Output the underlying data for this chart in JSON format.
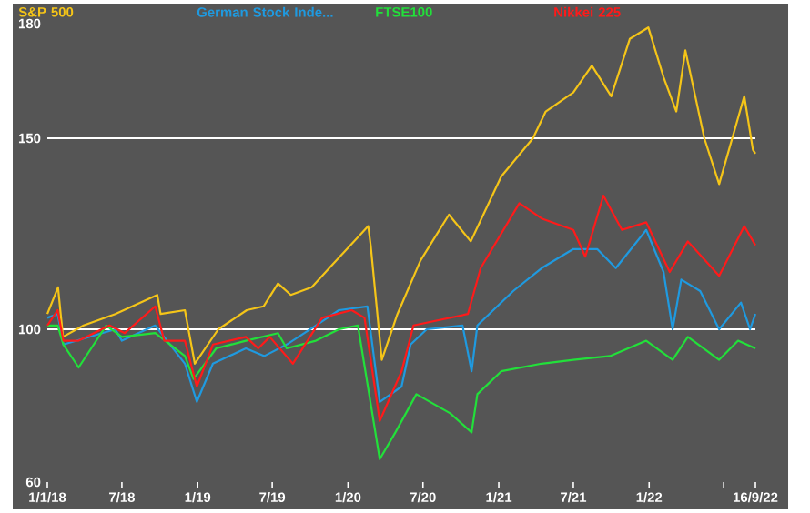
{
  "chart_data": {
    "type": "line",
    "legend": "top",
    "line_style": "solid",
    "xlim": [
      "2018-01-01",
      "2022-09-16"
    ],
    "xticks": [
      {
        "value": "2018-01-01",
        "label": "1/1/18"
      },
      {
        "value": "2018-07-01",
        "label": "7/18"
      },
      {
        "value": "2019-01-01",
        "label": "1/19"
      },
      {
        "value": "2019-07-01",
        "label": "7/19"
      },
      {
        "value": "2020-01-01",
        "label": "1/20"
      },
      {
        "value": "2020-07-01",
        "label": "7/20"
      },
      {
        "value": "2021-01-01",
        "label": "1/21"
      },
      {
        "value": "2021-07-01",
        "label": "7/21"
      },
      {
        "value": "2022-01-01",
        "label": "1/22"
      },
      {
        "value": "2022-07-01",
        "label": null
      },
      {
        "value": "2022-09-16",
        "label": "16/9/22"
      }
    ],
    "ylim": [
      60,
      180
    ],
    "yticks": [
      60,
      100,
      150,
      180
    ],
    "ref_lines": [
      {
        "axis": "y",
        "value": 100,
        "color": "#ffffff"
      },
      {
        "axis": "y",
        "value": 150,
        "color": "#ffffff"
      }
    ],
    "series": [
      {
        "name": "S&P 500",
        "color": "#f5c518",
        "x": [
          "2018-01-01",
          "2018-01-27",
          "2018-02-08",
          "2018-03-30",
          "2018-06-15",
          "2018-09-25",
          "2018-10-03",
          "2018-12-01",
          "2018-12-25",
          "2019-02-20",
          "2019-04-30",
          "2019-06-10",
          "2019-07-15",
          "2019-08-15",
          "2019-10-05",
          "2019-11-25",
          "2020-02-19",
          "2020-02-25",
          "2020-03-23",
          "2020-04-30",
          "2020-06-25",
          "2020-09-02",
          "2020-10-25",
          "2021-01-07",
          "2021-03-25",
          "2021-04-25",
          "2021-07-01",
          "2021-08-15",
          "2021-10-01",
          "2021-11-15",
          "2021-12-30",
          "2022-02-05",
          "2022-03-08",
          "2022-03-30",
          "2022-05-15",
          "2022-06-20",
          "2022-08-20",
          "2022-09-10",
          "2022-09-16"
        ],
        "values": [
          104,
          111,
          98,
          101,
          104,
          109,
          104,
          105,
          91,
          100,
          105,
          106,
          112,
          109,
          111,
          117,
          127,
          122,
          92,
          104,
          118,
          130,
          123,
          140,
          150,
          157,
          162,
          169,
          161,
          176,
          179,
          166,
          157,
          173,
          150,
          138,
          161,
          147,
          146
        ]
      },
      {
        "name": "German Stock Inde...",
        "color": "#1f9ae0",
        "x": [
          "2018-01-01",
          "2018-01-26",
          "2018-02-09",
          "2018-06-15",
          "2018-07-01",
          "2018-09-20",
          "2018-12-01",
          "2018-12-30",
          "2019-02-07",
          "2019-04-28",
          "2019-06-12",
          "2019-08-05",
          "2019-10-15",
          "2019-12-10",
          "2020-02-17",
          "2020-03-18",
          "2020-05-10",
          "2020-06-01",
          "2020-07-10",
          "2020-10-05",
          "2020-10-27",
          "2020-11-10",
          "2021-02-05",
          "2021-04-15",
          "2021-07-01",
          "2021-08-28",
          "2021-10-12",
          "2021-12-25",
          "2022-02-05",
          "2022-02-27",
          "2022-03-20",
          "2022-05-05",
          "2022-06-20",
          "2022-08-12",
          "2022-09-03",
          "2022-09-16"
        ],
        "values": [
          103,
          104,
          96,
          100,
          97,
          101,
          91,
          81,
          91,
          95,
          93,
          96,
          101,
          105,
          106,
          81,
          85,
          96,
          100,
          101,
          89,
          101,
          110,
          116,
          121,
          121,
          116,
          126,
          115,
          100,
          113,
          110,
          100,
          107,
          100,
          104
        ]
      },
      {
        "name": "FTSE100",
        "color": "#22e03a",
        "x": [
          "2018-01-01",
          "2018-01-26",
          "2018-02-09",
          "2018-03-18",
          "2018-05-24",
          "2018-07-01",
          "2018-09-20",
          "2018-12-01",
          "2018-12-22",
          "2019-02-15",
          "2019-04-28",
          "2019-07-15",
          "2019-08-05",
          "2019-10-15",
          "2019-12-10",
          "2020-01-25",
          "2020-03-18",
          "2020-04-25",
          "2020-06-15",
          "2020-09-05",
          "2020-10-27",
          "2020-11-10",
          "2021-01-07",
          "2021-04-15",
          "2021-07-01",
          "2021-09-28",
          "2021-12-25",
          "2022-02-27",
          "2022-04-05",
          "2022-06-20",
          "2022-08-05",
          "2022-09-16"
        ],
        "values": [
          101,
          101,
          96,
          90,
          101,
          98,
          99,
          93,
          87,
          95,
          97,
          99,
          95,
          97,
          100,
          101,
          66,
          73,
          83,
          78,
          73,
          83,
          89,
          91,
          92,
          93,
          97,
          92,
          98,
          92,
          97,
          95
        ]
      },
      {
        "name": "Nikkei 225",
        "color": "#ff1a1a",
        "x": [
          "2018-01-01",
          "2018-01-26",
          "2018-02-09",
          "2018-03-18",
          "2018-06-01",
          "2018-07-08",
          "2018-09-20",
          "2018-10-12",
          "2018-12-01",
          "2018-12-30",
          "2019-02-07",
          "2019-04-28",
          "2019-05-28",
          "2019-06-25",
          "2019-08-20",
          "2019-10-30",
          "2020-01-10",
          "2020-02-10",
          "2020-03-18",
          "2020-05-10",
          "2020-06-08",
          "2020-10-18",
          "2020-11-18",
          "2021-02-20",
          "2021-04-15",
          "2021-07-01",
          "2021-07-30",
          "2021-09-12",
          "2021-10-27",
          "2021-12-25",
          "2022-02-20",
          "2022-04-05",
          "2022-06-20",
          "2022-08-20",
          "2022-09-16"
        ],
        "values": [
          101,
          105,
          97,
          97,
          101,
          99,
          106,
          97,
          97,
          85,
          96,
          98,
          95,
          98,
          91,
          103,
          105,
          103,
          76,
          89,
          101,
          104,
          116,
          133,
          129,
          126,
          119,
          135,
          126,
          128,
          115,
          123,
          114,
          127,
          122
        ]
      }
    ]
  }
}
